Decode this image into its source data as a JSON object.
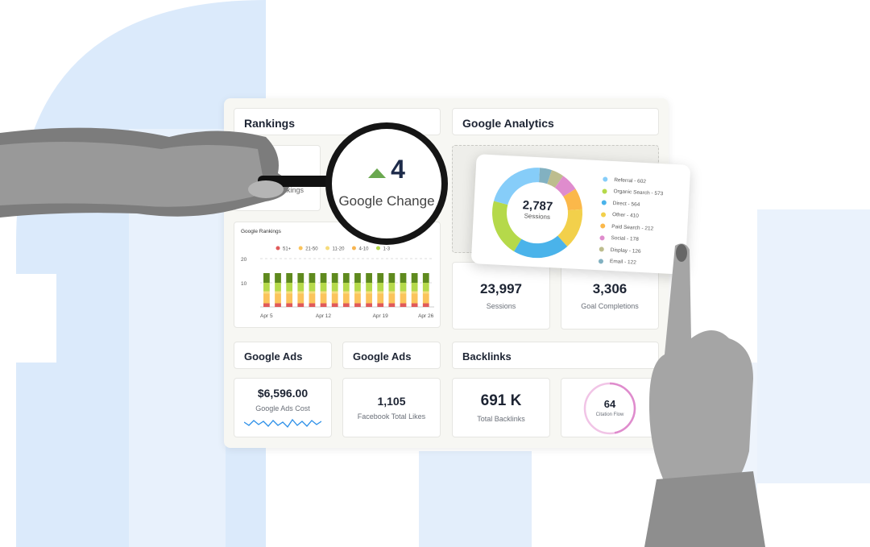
{
  "dashboard": {
    "rankings_header": "Rankings",
    "analytics_header": "Google Analytics",
    "google_change": {
      "value": "4",
      "label": "Google Change",
      "trend": "up",
      "trend_color": "#6aa84f"
    },
    "rankings_card_label_partial": "nkings",
    "google_rankings": {
      "title": "Google Rankings"
    },
    "sessions": {
      "value": "23,997",
      "label": "Sessions"
    },
    "goal_completions": {
      "value": "3,306",
      "label": "Goal Completions"
    },
    "ads_header_1": "Google Ads",
    "ads_header_2": "Google Ads",
    "backlinks_header": "Backlinks",
    "ads_cost": {
      "value": "$6,596.00",
      "label": "Google Ads Cost"
    },
    "facebook_likes": {
      "value": "1,105",
      "label": "Facebook Total Likes"
    },
    "total_backlinks": {
      "value": "691 K",
      "label": "Total Backlinks"
    },
    "citation_flow": {
      "value": "64",
      "label": "Citation Flow",
      "color": "#df8ccd"
    }
  },
  "donut": {
    "center_value": "2,787",
    "center_label": "Sessions",
    "legend": [
      "Referral - 602",
      "Organic Search - 573",
      "Direct - 564",
      "Other - 410",
      "Paid Search - 212",
      "Social - 178",
      "Display - 126",
      "Email - 122"
    ]
  },
  "chart_data": [
    {
      "type": "bar",
      "title": "Google Rankings",
      "stacked": true,
      "categories": [
        "Apr 5",
        "",
        "",
        "",
        "",
        "Apr 12",
        "",
        "",
        "",
        "",
        "Apr 19",
        "",
        "",
        "",
        "Apr 26"
      ],
      "xtick_labels": [
        "Apr 5",
        "Apr 12",
        "Apr 19",
        "Apr 26"
      ],
      "yticks": [
        "10",
        "20"
      ],
      "ylim": [
        0,
        20
      ],
      "grid": true,
      "legend_position": "top",
      "series": [
        {
          "name": "51+",
          "color": "#e05a5a",
          "values": [
            1.5,
            1.5,
            1.5,
            1.5,
            1.5,
            1.5,
            1.5,
            1.5,
            1.5,
            1.5,
            1.5,
            1.5,
            1.5,
            1.5,
            1.5
          ]
        },
        {
          "name": "21-50",
          "color": "#fbc45c",
          "values": [
            4,
            4,
            4,
            4,
            4,
            4,
            4,
            4,
            4,
            4,
            4,
            4,
            4,
            4,
            4
          ]
        },
        {
          "name": "11-20",
          "color": "#f6dc7c",
          "values": [
            1,
            1,
            1,
            1,
            1,
            1,
            1,
            1,
            1,
            1,
            1,
            1,
            1,
            1,
            1
          ]
        },
        {
          "name": "4-10",
          "color": "#f7b450",
          "values": [
            0,
            0,
            0,
            0,
            0,
            0,
            0,
            0,
            0,
            0,
            0,
            0,
            0,
            0,
            0
          ]
        },
        {
          "name": "1-3",
          "color": "#b5d94a",
          "values": [
            3.5,
            3.5,
            3.5,
            3.5,
            3.5,
            3.5,
            3.5,
            3.5,
            3.5,
            3.5,
            3.5,
            3.5,
            3.5,
            3.5,
            3.5
          ]
        },
        {
          "color": "#5f8a1e",
          "values": [
            4,
            4,
            4,
            4,
            4,
            4,
            4,
            4,
            4,
            4,
            4,
            4,
            4,
            4,
            4
          ]
        }
      ]
    },
    {
      "type": "pie",
      "donut": true,
      "center_value": "2,787",
      "center_label": "Sessions",
      "categories": [
        "Referral",
        "Organic Search",
        "Direct",
        "Other",
        "Paid Search",
        "Social",
        "Display",
        "Email"
      ],
      "values": [
        602,
        573,
        564,
        410,
        212,
        178,
        126,
        122
      ],
      "colors": [
        "#86cdf9",
        "#b5d94a",
        "#4ab3ea",
        "#f2d04b",
        "#fbb84a",
        "#df8ccd",
        "#bdbd8e",
        "#82b1c1"
      ]
    }
  ]
}
